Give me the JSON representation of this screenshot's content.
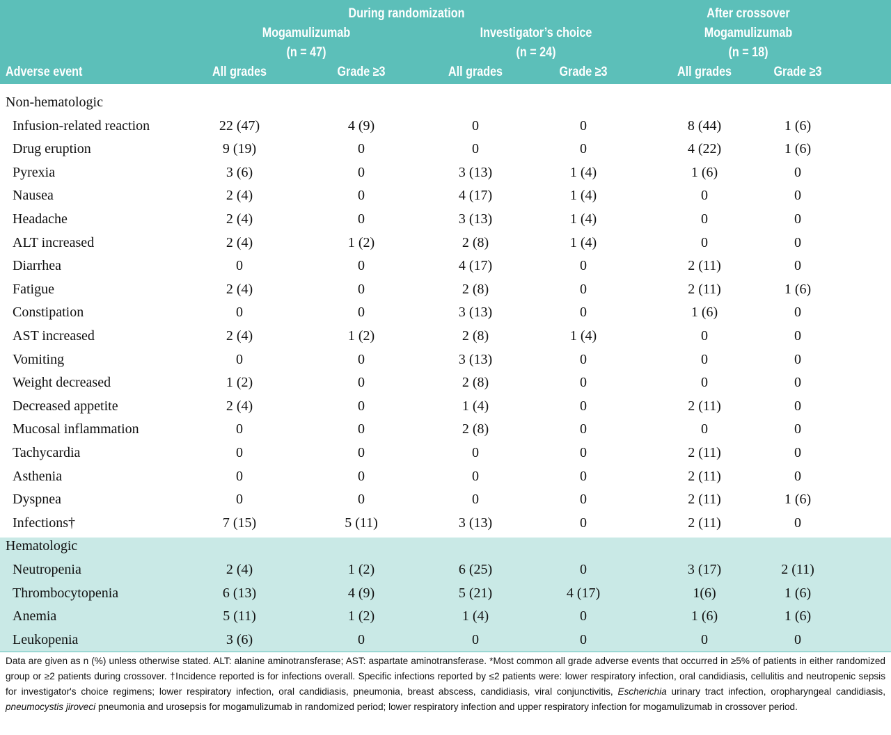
{
  "header": {
    "label": "Adverse event",
    "groups": [
      {
        "title": "During randomization",
        "arms": [
          {
            "name": "Mogamulizumab",
            "n": "(n = 47)"
          },
          {
            "name": "Investigator’s choice",
            "n": "(n = 24)"
          }
        ]
      },
      {
        "title": "After crossover",
        "arms": [
          {
            "name": "Mogamulizumab",
            "n": "(n = 18)"
          }
        ]
      }
    ],
    "subcolumns": [
      "All grades",
      "Grade ≥3",
      "All grades",
      "Grade ≥3",
      "All grades",
      "Grade ≥3"
    ]
  },
  "sections": [
    {
      "title": "Non-hematologic",
      "rows": [
        [
          "Infusion-related reaction",
          "22 (47)",
          "4 (9)",
          "0",
          "0",
          "8 (44)",
          "1 (6)"
        ],
        [
          "Drug eruption",
          "9 (19)",
          "0",
          "0",
          "0",
          "4 (22)",
          "1 (6)"
        ],
        [
          "Pyrexia",
          "3 (6)",
          "0",
          "3 (13)",
          "1 (4)",
          "1 (6)",
          "0"
        ],
        [
          "Nausea",
          "2 (4)",
          "0",
          "4 (17)",
          "1 (4)",
          "0",
          "0"
        ],
        [
          "Headache",
          "2 (4)",
          "0",
          "3 (13)",
          "1 (4)",
          "0",
          "0"
        ],
        [
          "ALT increased",
          "2 (4)",
          "1 (2)",
          "2 (8)",
          "1 (4)",
          "0",
          "0"
        ],
        [
          "Diarrhea",
          "0",
          "0",
          "4 (17)",
          "0",
          "2 (11)",
          "0"
        ],
        [
          "Fatigue",
          "2 (4)",
          "0",
          "2 (8)",
          "0",
          "2 (11)",
          "1 (6)"
        ],
        [
          "Constipation",
          "0",
          "0",
          "3 (13)",
          "0",
          "1 (6)",
          "0"
        ],
        [
          "AST increased",
          "2 (4)",
          "1 (2)",
          "2 (8)",
          "1 (4)",
          "0",
          "0"
        ],
        [
          "Vomiting",
          "0",
          "0",
          "3 (13)",
          "0",
          "0",
          "0"
        ],
        [
          "Weight decreased",
          "1 (2)",
          "0",
          "2 (8)",
          "0",
          "0",
          "0"
        ],
        [
          "Decreased appetite",
          "2 (4)",
          "0",
          "1 (4)",
          "0",
          "2 (11)",
          "0"
        ],
        [
          "Mucosal inflammation",
          "0",
          "0",
          "2 (8)",
          "0",
          "0",
          "0"
        ],
        [
          "Tachycardia",
          "0",
          "0",
          "0",
          "0",
          "2 (11)",
          "0"
        ],
        [
          "Asthenia",
          "0",
          "0",
          "0",
          "0",
          "2 (11)",
          "0"
        ],
        [
          "Dyspnea",
          "0",
          "0",
          "0",
          "0",
          "2 (11)",
          "1 (6)"
        ],
        [
          "Infections†",
          "7 (15)",
          "5 (11)",
          "3 (13)",
          "0",
          "2 (11)",
          "0"
        ]
      ]
    },
    {
      "title": "Hematologic",
      "rows": [
        [
          "Neutropenia",
          "2 (4)",
          "1 (2)",
          "6 (25)",
          "0",
          "3 (17)",
          "2 (11)"
        ],
        [
          "Thrombocytopenia",
          "6 (13)",
          "4 (9)",
          "5 (21)",
          "4 (17)",
          "1(6)",
          "1 (6)"
        ],
        [
          "Anemia",
          "5 (11)",
          "1 (2)",
          "1 (4)",
          "0",
          "1 (6)",
          "1 (6)"
        ],
        [
          "Leukopenia",
          "3 (6)",
          "0",
          "0",
          "0",
          "0",
          "0"
        ]
      ]
    }
  ],
  "footnote": {
    "parts": [
      "Data are given as n (%) unless otherwise stated. ALT: alanine aminotransferase; AST: aspartate aminotransferase. *Most common all grade adverse events that occurred in ≥5% of patients in either randomized group or ≥2 patients during crossover. †Incidence reported is for infections overall. Specific infections reported by ≤2 patients were: lower respiratory infection, oral candidiasis, cellulitis and neutropenic sepsis for investigator's choice regimens; lower respiratory infection, oral candidiasis, pneumonia, breast abscess, candidiasis, viral conjunctivitis, ",
      "Escherichia",
      " urinary tract infection, oropharyngeal candidiasis, ",
      "pneumocystis jiroveci",
      " pneumonia and urosepsis for mogamulizumab in randomized period; lower respiratory infection and upper respiratory infection for mogamulizumab in crossover  period."
    ]
  }
}
